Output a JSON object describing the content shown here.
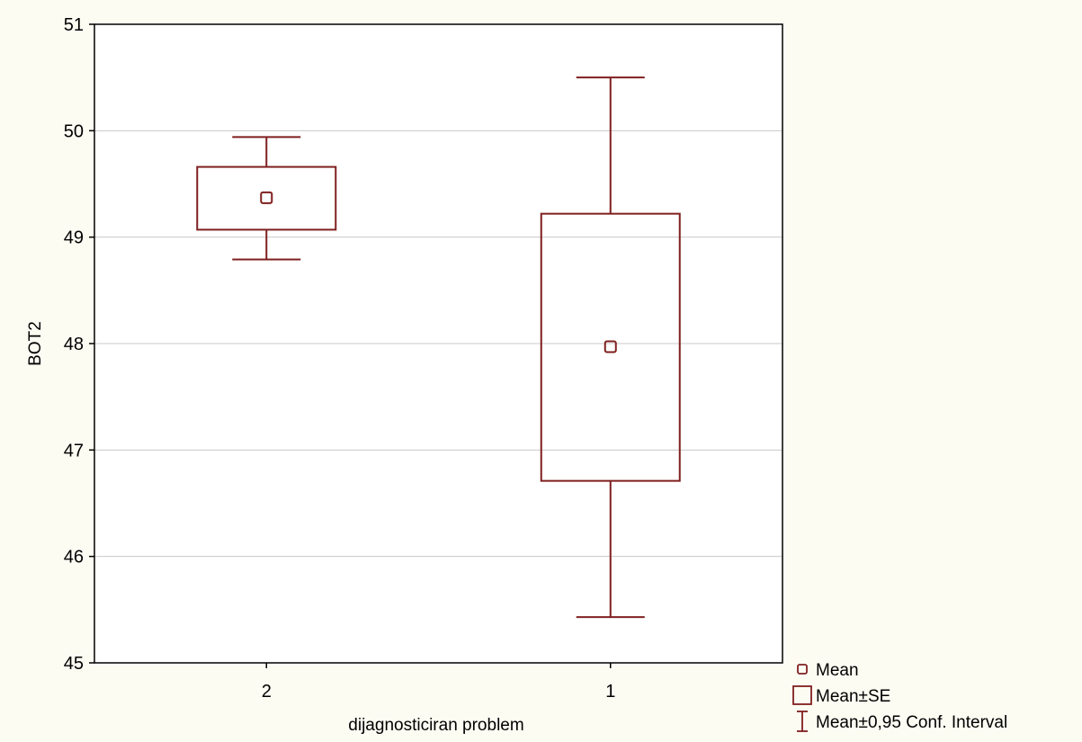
{
  "chart_data": {
    "type": "box",
    "ylabel": "BOT2",
    "xlabel": "dijagnosticiran problem",
    "ylim": [
      45,
      51
    ],
    "yticks": [
      45,
      46,
      47,
      48,
      49,
      50,
      51
    ],
    "grid": true,
    "legend_position": "bottom-right",
    "colors": {
      "series": "#7f1f1f",
      "grid": "#c8c8c8",
      "frame": "#000000",
      "plot_bg": "#ffffff",
      "page_bg": "#fdfcf3"
    },
    "categories": [
      "2",
      "1"
    ],
    "groups": [
      {
        "category": "2",
        "mean": 49.37,
        "se_low": 49.07,
        "se_high": 49.66,
        "ci_low": 48.79,
        "ci_high": 49.94
      },
      {
        "category": "1",
        "mean": 47.97,
        "se_low": 46.71,
        "se_high": 49.22,
        "ci_low": 45.43,
        "ci_high": 50.5
      }
    ],
    "legend": [
      {
        "symbol": "mean-marker",
        "label": "Mean"
      },
      {
        "symbol": "se-box",
        "label": "Mean±SE"
      },
      {
        "symbol": "ci-whisker",
        "label": "Mean±0,95 Conf. Interval"
      }
    ]
  }
}
